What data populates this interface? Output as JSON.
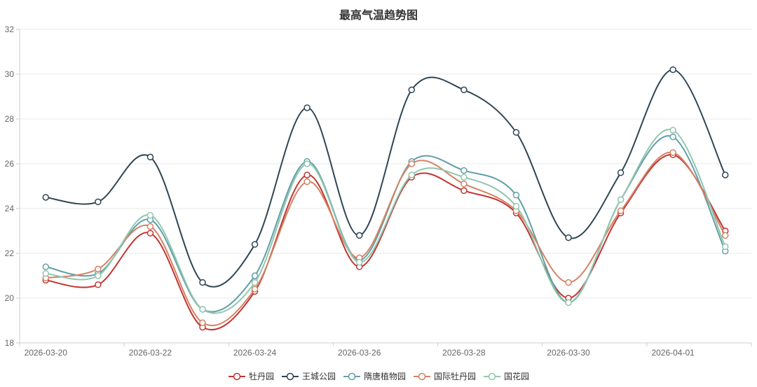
{
  "chart_data": {
    "type": "line",
    "smooth": true,
    "title": "最高气温趋势图",
    "xlabel": "",
    "ylabel": "",
    "ylim": [
      18,
      32
    ],
    "y_ticks": [
      18,
      20,
      22,
      24,
      26,
      28,
      30,
      32
    ],
    "grid": true,
    "legend_position": "bottom",
    "x_label_interval": 2,
    "x": [
      "2026-03-20",
      "2026-03-21",
      "2026-03-22",
      "2026-03-23",
      "2026-03-24",
      "2026-03-25",
      "2026-03-26",
      "2026-03-27",
      "2026-03-28",
      "2026-03-29",
      "2026-03-30",
      "2026-03-31",
      "2026-04-01",
      "2026-04-02"
    ],
    "x_axis_labels_shown": [
      "2026-03-20",
      "2026-03-22",
      "2026-03-24",
      "2026-03-26",
      "2026-03-28",
      "2026-03-30",
      "2026-04-01"
    ],
    "series": [
      {
        "name": "牡丹园",
        "color": "#c23531",
        "values": [
          20.8,
          20.6,
          22.9,
          18.7,
          20.3,
          25.5,
          21.4,
          25.4,
          24.8,
          23.8,
          20.0,
          23.8,
          26.4,
          23.0
        ]
      },
      {
        "name": "王城公园",
        "color": "#2f4554",
        "values": [
          24.5,
          24.3,
          26.3,
          20.7,
          22.4,
          28.5,
          22.8,
          29.3,
          29.3,
          27.4,
          22.7,
          25.6,
          30.2,
          25.5
        ]
      },
      {
        "name": "隋唐植物园",
        "color": "#61a0a8",
        "values": [
          21.4,
          21.1,
          23.5,
          19.5,
          21.0,
          26.1,
          21.7,
          26.1,
          25.7,
          24.6,
          19.8,
          24.4,
          27.2,
          22.1
        ]
      },
      {
        "name": "国际牡丹园",
        "color": "#d48265",
        "values": [
          20.9,
          21.3,
          23.2,
          18.9,
          20.4,
          25.2,
          21.8,
          26.0,
          25.1,
          23.9,
          20.7,
          23.9,
          26.5,
          22.8
        ]
      },
      {
        "name": "国花园",
        "color": "#91c7ae",
        "values": [
          21.1,
          21.0,
          23.7,
          19.5,
          20.7,
          26.0,
          21.6,
          25.5,
          25.4,
          24.1,
          19.8,
          24.4,
          27.5,
          22.3
        ]
      }
    ]
  },
  "colors": {
    "background": "#ffffff",
    "title_text": "#333333",
    "axis_line": "#cccccc",
    "grid_line": "#e9e9e9",
    "axis_label": "#666666",
    "legend_text": "#333333",
    "marker_fill": "#ffffff"
  }
}
